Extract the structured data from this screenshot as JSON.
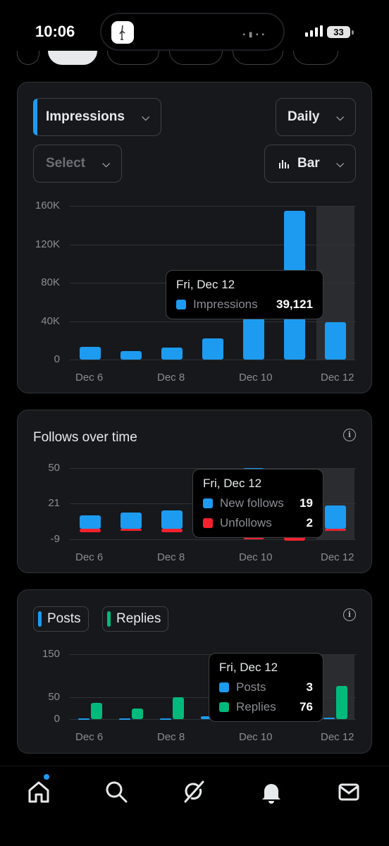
{
  "status_bar": {
    "time": "10:06",
    "battery": "33"
  },
  "colors": {
    "accent": "#1d9bf0",
    "unfollows": "#f4212e",
    "replies": "#00ba7c",
    "card_bg": "#16181c"
  },
  "impressions_card": {
    "metric_select": "Impressions",
    "period_select": "Daily",
    "compare_select": "Select",
    "chart_type_select": "Bar",
    "tooltip": {
      "title": "Fri, Dec 12",
      "label": "Impressions",
      "value": "39,121"
    }
  },
  "follows_card": {
    "title": "Follows over time",
    "tooltip": {
      "title": "Fri, Dec 12",
      "rows": [
        {
          "label": "New follows",
          "value": "19"
        },
        {
          "label": "Unfollows",
          "value": "2"
        }
      ]
    }
  },
  "posts_card": {
    "legend": [
      "Posts",
      "Replies"
    ],
    "tooltip": {
      "title": "Fri, Dec 12",
      "rows": [
        {
          "label": "Posts",
          "value": "3"
        },
        {
          "label": "Replies",
          "value": "76"
        }
      ]
    }
  },
  "nav": [
    "home-icon",
    "search-icon",
    "grok-icon",
    "notifications-icon",
    "messages-icon"
  ],
  "chart_data": [
    {
      "type": "bar",
      "categories": [
        "Dec 6",
        "Dec 7",
        "Dec 8",
        "Dec 9",
        "Dec 10",
        "Dec 11",
        "Dec 12"
      ],
      "x_tick_labels": [
        "Dec 6",
        "Dec 8",
        "Dec 10",
        "Dec 12"
      ],
      "y_tick_labels": [
        "160K",
        "120K",
        "80K",
        "40K",
        "0"
      ],
      "ylim": [
        0,
        160000
      ],
      "series": [
        {
          "name": "Impressions",
          "values": [
            13000,
            9000,
            12500,
            22000,
            60000,
            155000,
            39121
          ]
        }
      ]
    },
    {
      "type": "bar",
      "categories": [
        "Dec 6",
        "Dec 7",
        "Dec 8",
        "Dec 9",
        "Dec 10",
        "Dec 11",
        "Dec 12"
      ],
      "x_tick_labels": [
        "Dec 6",
        "Dec 8",
        "Dec 10",
        "Dec 12"
      ],
      "y_tick_labels": [
        "50",
        "21",
        "-9"
      ],
      "ylim": [
        -9,
        50
      ],
      "series": [
        {
          "name": "New follows",
          "values": [
            11,
            13,
            15,
            16,
            50,
            17,
            19
          ]
        },
        {
          "name": "Unfollows",
          "values": [
            -3,
            -2,
            -3,
            -7,
            -9,
            -10,
            -2
          ]
        }
      ]
    },
    {
      "type": "bar",
      "categories": [
        "Dec 6",
        "Dec 7",
        "Dec 8",
        "Dec 9",
        "Dec 10",
        "Dec 11",
        "Dec 12"
      ],
      "x_tick_labels": [
        "Dec 6",
        "Dec 8",
        "Dec 10",
        "Dec 12"
      ],
      "y_tick_labels": [
        "150",
        "50",
        "0"
      ],
      "ylim": [
        0,
        150
      ],
      "series": [
        {
          "name": "Posts",
          "values": [
            2,
            1,
            2,
            6,
            3,
            3,
            3
          ]
        },
        {
          "name": "Replies",
          "values": [
            38,
            24,
            50,
            20,
            20,
            22,
            76
          ]
        }
      ]
    }
  ]
}
